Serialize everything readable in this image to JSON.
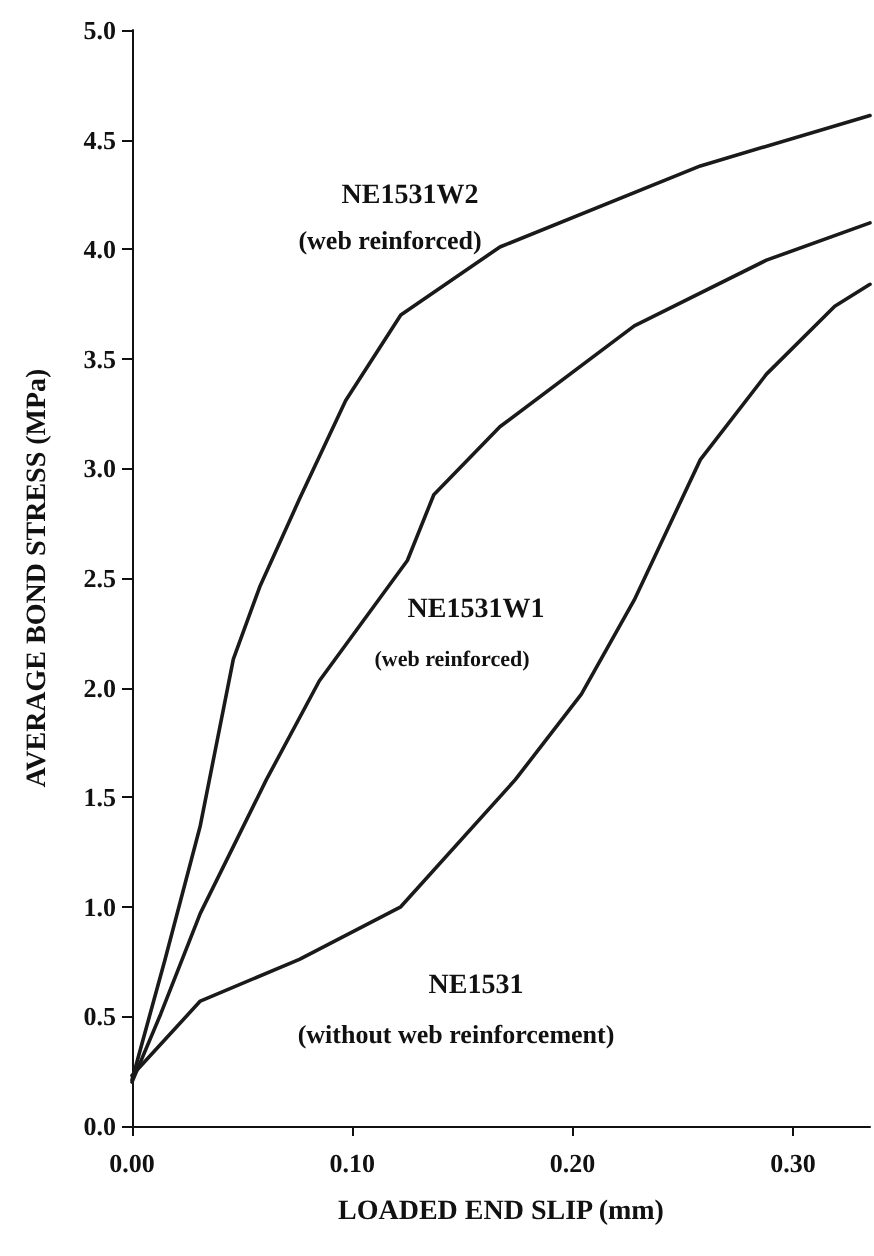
{
  "chart_data": {
    "type": "line",
    "xlabel": "LOADED END SLIP (mm)",
    "ylabel": "AVERAGE BOND STRESS (MPa)",
    "xlim": [
      0,
      0.335
    ],
    "ylim": [
      0,
      5
    ],
    "xticks": [
      {
        "value": 0,
        "label": "0.00"
      },
      {
        "value": 0.1,
        "label": "0.10"
      },
      {
        "value": 0.2,
        "label": "0.20"
      },
      {
        "value": 0.3,
        "label": "0.30"
      }
    ],
    "yticks": [
      {
        "value": 0,
        "label": "0.0"
      },
      {
        "value": 0.5,
        "label": "0.5"
      },
      {
        "value": 1,
        "label": "1.0"
      },
      {
        "value": 1.5,
        "label": "1.5"
      },
      {
        "value": 2,
        "label": "2.0"
      },
      {
        "value": 2.5,
        "label": "2.5"
      },
      {
        "value": 3,
        "label": "3.0"
      },
      {
        "value": 3.5,
        "label": "3.5"
      },
      {
        "value": 4,
        "label": "4.0"
      },
      {
        "value": 4.5,
        "label": "4.5"
      },
      {
        "value": 5,
        "label": "5.0"
      }
    ],
    "grid": false,
    "legend": false,
    "marker": "none",
    "line_style": "solid",
    "series": [
      {
        "name": "NE1531W2",
        "color": "#1a1a1a",
        "x": [
          0,
          0.015,
          0.031,
          0.046,
          0.058,
          0.076,
          0.097,
          0.122,
          0.167,
          0.258,
          0.335
        ],
        "values": [
          0.21,
          0.76,
          1.37,
          2.13,
          2.46,
          2.86,
          3.31,
          3.7,
          4.01,
          4.38,
          4.61
        ]
      },
      {
        "name": "NE1531W1",
        "color": "#1a1a1a",
        "x": [
          0,
          0.013,
          0.031,
          0.061,
          0.085,
          0.125,
          0.137,
          0.167,
          0.228,
          0.288,
          0.335
        ],
        "values": [
          0.2,
          0.51,
          0.97,
          1.58,
          2.03,
          2.58,
          2.88,
          3.19,
          3.65,
          3.95,
          4.12
        ]
      },
      {
        "name": "NE1531",
        "color": "#1a1a1a",
        "x": [
          0,
          0.031,
          0.076,
          0.122,
          0.174,
          0.204,
          0.228,
          0.258,
          0.288,
          0.319,
          0.335
        ],
        "values": [
          0.23,
          0.57,
          0.76,
          1.0,
          1.58,
          1.97,
          2.4,
          3.04,
          3.43,
          3.74,
          3.84
        ]
      }
    ],
    "annotations": [
      "(web reinforced)",
      "(web reinforced)",
      "(without web reinforcement)"
    ]
  }
}
